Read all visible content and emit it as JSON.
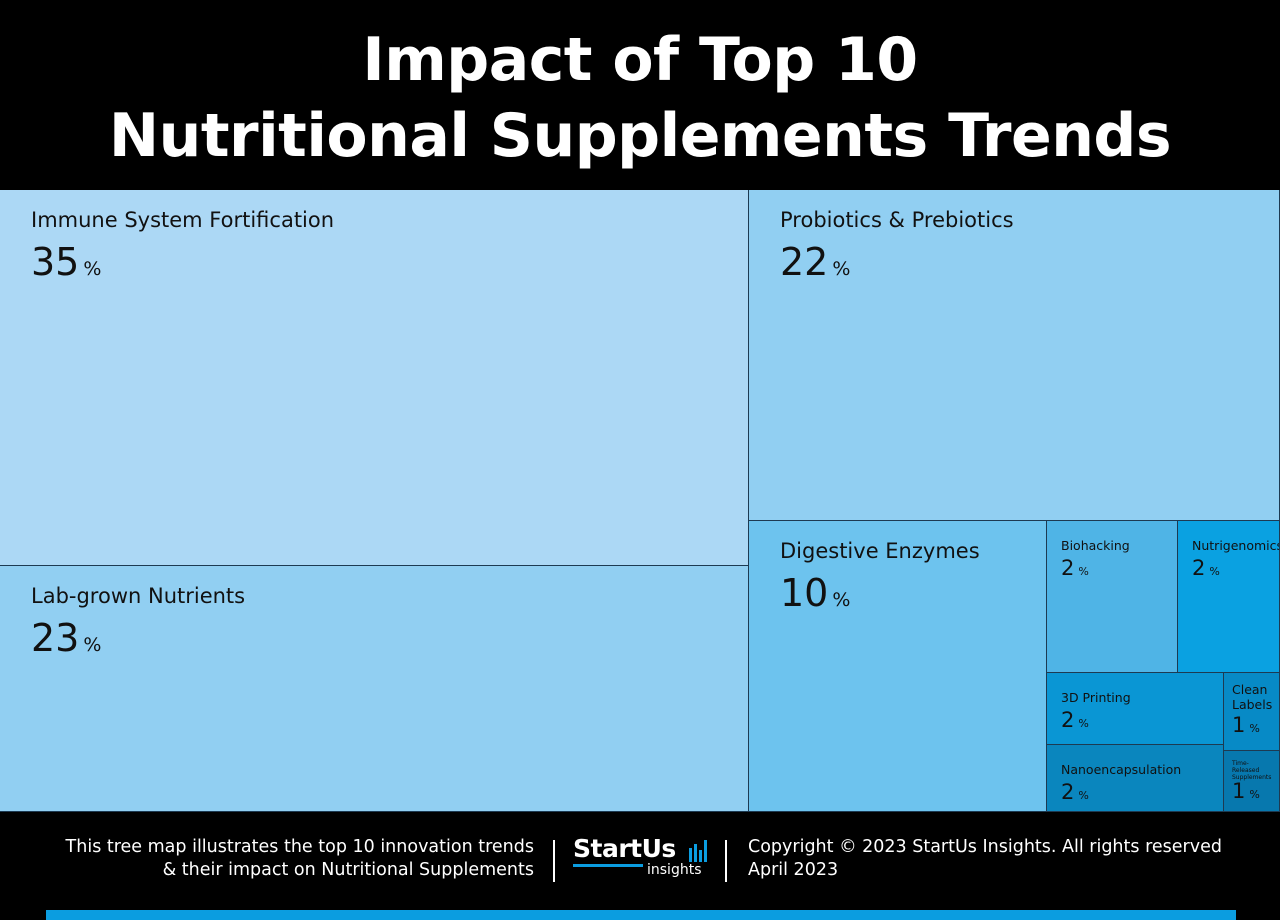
{
  "title": {
    "line1": "Impact of Top 10",
    "line2": "Nutritional Supplements Trends"
  },
  "chart_data": {
    "type": "treemap",
    "unit": "%",
    "items": [
      {
        "name": "Immune System Fortification",
        "value": 35,
        "color": "#acd8f5"
      },
      {
        "name": "Lab-grown Nutrients",
        "value": 23,
        "color": "#91cff2"
      },
      {
        "name": "Probiotics & Prebiotics",
        "value": 22,
        "color": "#91cff2"
      },
      {
        "name": "Digestive Enzymes",
        "value": 10,
        "color": "#6dc3ee"
      },
      {
        "name": "Biohacking",
        "value": 2,
        "color": "#4fb4e6"
      },
      {
        "name": "Nutrigenomics",
        "value": 2,
        "color": "#0aa1e1"
      },
      {
        "name": "3D Printing",
        "value": 2,
        "color": "#0a96d4"
      },
      {
        "name": "Clean Labels",
        "value": 1,
        "color": "#078ac6"
      },
      {
        "name": "Nanoencapsulation",
        "value": 2,
        "color": "#0a86be"
      },
      {
        "name": "Time-Released Supplements",
        "value": 1,
        "color": "#0778ae"
      }
    ]
  },
  "footer": {
    "description_line1": "This tree map illustrates the top 10 innovation trends",
    "description_line2": "& their impact on Nutritional Supplements",
    "logo_main": "StartUs",
    "logo_sub": "insights",
    "copyright": "Copyright © 2023 StartUs Insights. All rights reserved",
    "date": "April 2023"
  },
  "colors": {
    "background": "#000000",
    "accent_bar": "#0b9de0",
    "border": "#1d3a52"
  }
}
